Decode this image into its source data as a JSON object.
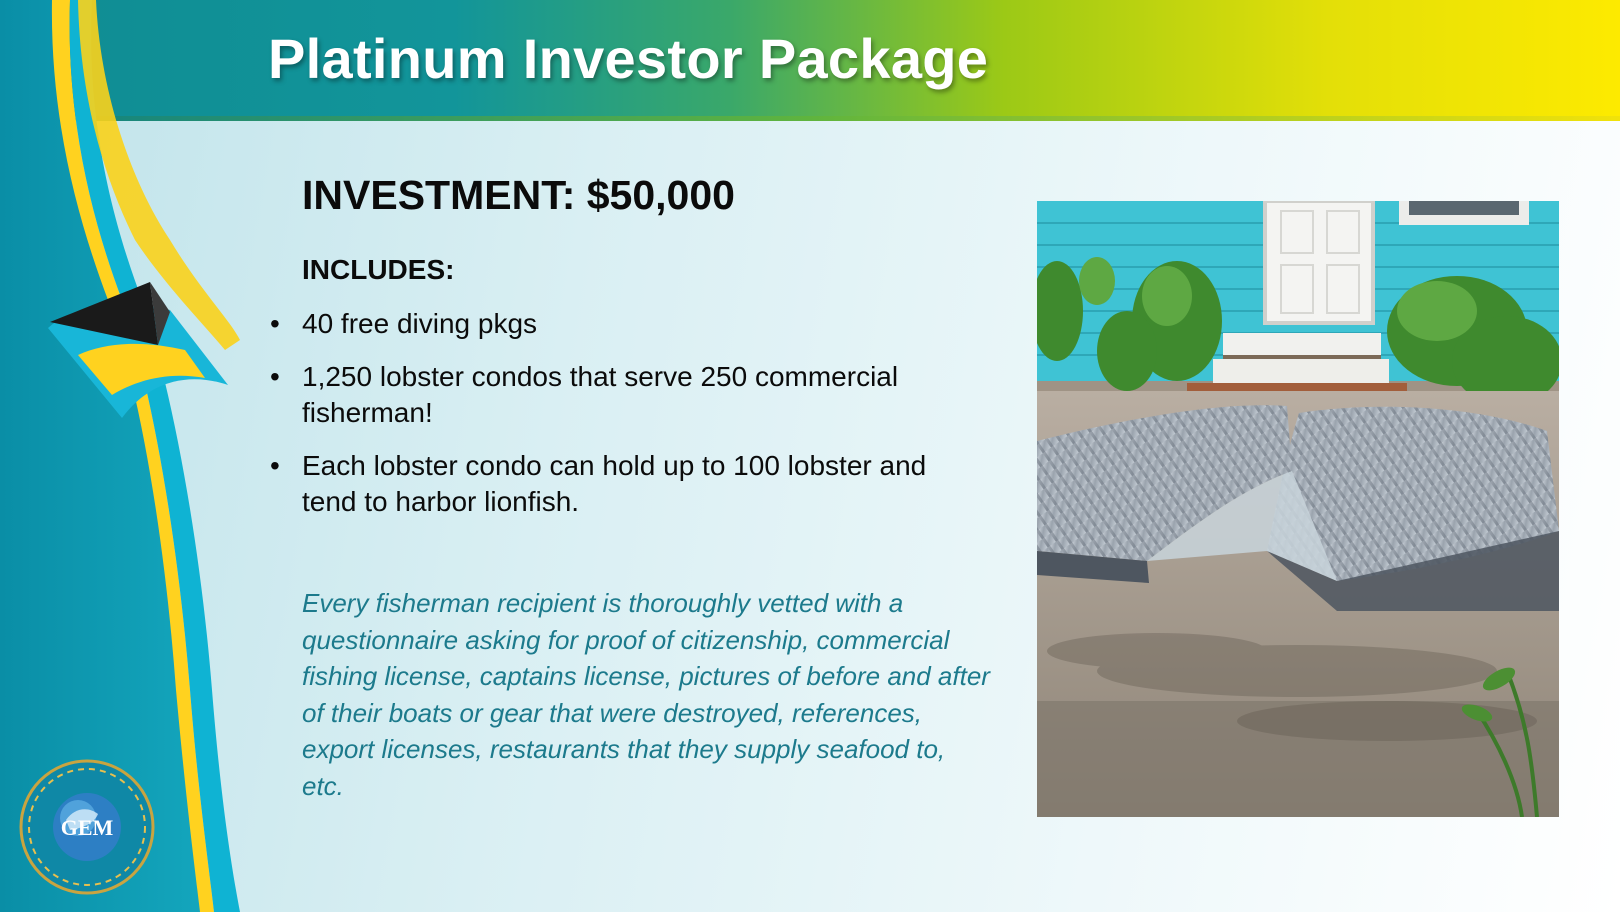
{
  "slide": {
    "title": "Platinum Investor Package",
    "investment": "INVESTMENT: $50,000",
    "includes_label": "INCLUDES:",
    "bullets": [
      "40 free diving pkgs",
      "1,250 lobster condos that serve 250 commercial fisherman!",
      "Each lobster condo can hold up to 100 lobster and tend to harbor lionfish."
    ],
    "bullet_glyph": "•",
    "note": "Every fisherman recipient is thoroughly vetted with a questionnaire asking for  proof of citizenship, commercial fishing license, captains license, pictures of before and after of their boats or gear that were destroyed, references, export licenses, restaurants that they supply seafood to, etc.",
    "logo_text": "GEM"
  },
  "colors": {
    "header_start": "#0f8c93",
    "header_end": "#fdea00",
    "flag_aquamarine": "#00a6c8",
    "flag_gold": "#ffd21f",
    "flag_black": "#111111",
    "note_text": "#1c7a8c",
    "house_wall": "#3fc3d4"
  },
  "icons": {
    "flag": "bahamas-flag-ribbon",
    "logo": "gem-globe-logo",
    "photo": "lobster-condo-photo"
  }
}
